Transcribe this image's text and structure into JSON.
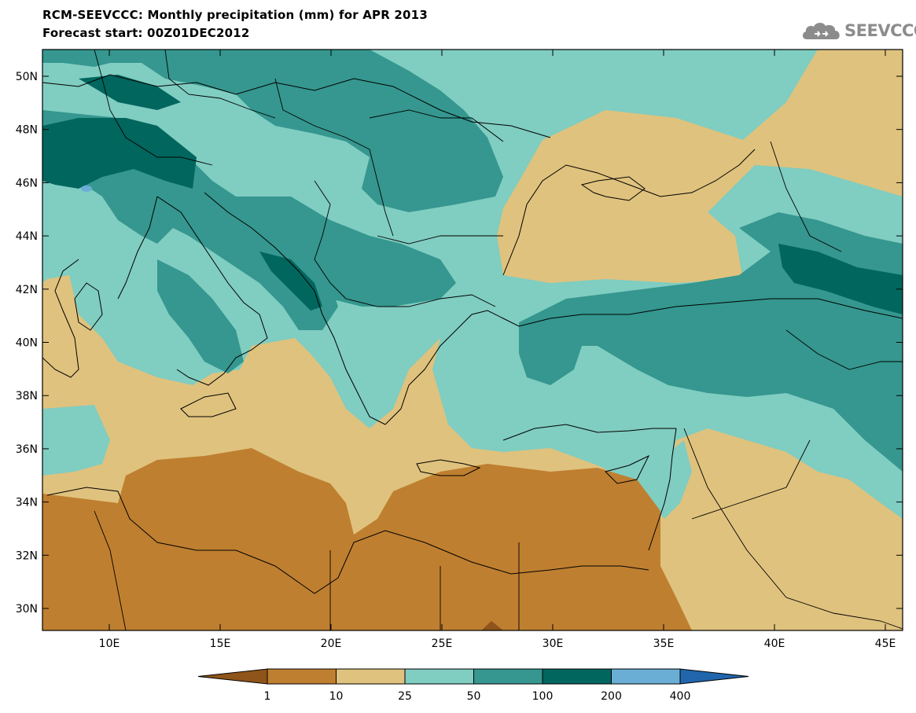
{
  "header": {
    "title": "RCM-SEEVCCC: Monthly precipitation (mm) for APR 2013",
    "subtitle": "Forecast start: 00Z01DEC2012"
  },
  "logo": {
    "text": "SEEVCCC",
    "icon": "cloud-icon"
  },
  "map": {
    "lat_labels": [
      "50N",
      "48N",
      "46N",
      "44N",
      "42N",
      "40N",
      "38N",
      "36N",
      "34N",
      "32N",
      "30N"
    ],
    "lon_labels": [
      "10E",
      "15E",
      "20E",
      "25E",
      "30E",
      "35E",
      "40E",
      "45E"
    ]
  },
  "legend": {
    "labels": [
      "1",
      "10",
      "25",
      "50",
      "100",
      "200",
      "400"
    ],
    "colors": [
      "#8f5419",
      "#bf7f30",
      "#dfc27d",
      "#80cdc1",
      "#35978f",
      "#01665e",
      "#6aaed6",
      "#2166ac"
    ]
  },
  "colors": {
    "dry_dark": "#bf7f30",
    "dry_light": "#dfc27d",
    "wet_light": "#80cdc1",
    "wet_mid": "#35978f",
    "wet_dark": "#01665e"
  }
}
